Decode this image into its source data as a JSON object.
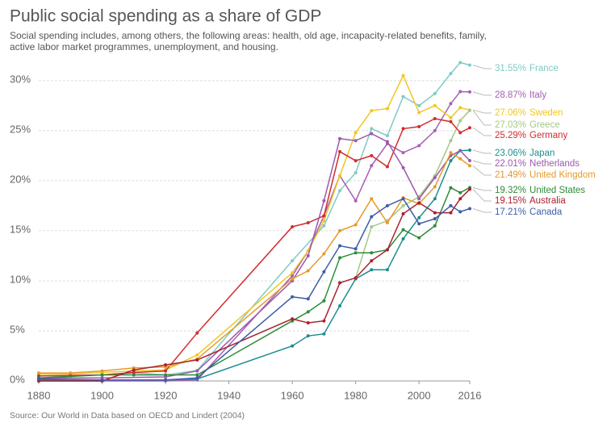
{
  "chart_data": {
    "type": "line",
    "title": "Public social spending as a share of GDP",
    "subtitle": [
      "Social spending includes, among others, the following areas: health, old age, incapacity-related benefits, family,",
      "active labor market programmes, unemployment, and housing."
    ],
    "source": "Source: Our World in Data based on OECD and Lindert (2004)",
    "xlim": [
      1880,
      2016
    ],
    "xticks": [
      1880,
      1900,
      1920,
      1940,
      1960,
      1980,
      2000,
      2016
    ],
    "ylim": [
      0,
      31.6
    ],
    "yticks": [
      {
        "value": 0,
        "label": "0%"
      },
      {
        "value": 5,
        "label": "5%"
      },
      {
        "value": 10,
        "label": "10%"
      },
      {
        "value": 15,
        "label": "15%"
      },
      {
        "value": 20,
        "label": "20%"
      },
      {
        "value": 25,
        "label": "25%"
      },
      {
        "value": 30,
        "label": "30%"
      }
    ],
    "grid": true,
    "series": [
      {
        "name": "France",
        "color": "#7fcac8",
        "x": [
          1880,
          1890,
          1900,
          1910,
          1920,
          1930,
          1960,
          1970,
          1975,
          1980,
          1985,
          1990,
          1995,
          2000,
          2005,
          2010,
          2013,
          2016
        ],
        "values": [
          0.5,
          0.5,
          0.6,
          0.8,
          0.6,
          1.05,
          12,
          15.5,
          19,
          20.8,
          25.2,
          24.5,
          28.4,
          27.5,
          28.7,
          30.7,
          31.8,
          31.55
        ],
        "value_labels": [
          null,
          null,
          null,
          null,
          null,
          null,
          null,
          null,
          null,
          null,
          null,
          null,
          null,
          null,
          null,
          null,
          null,
          "31.55%"
        ]
      },
      {
        "name": "Italy",
        "color": "#a660b3",
        "x": [
          1880,
          1900,
          1920,
          1930,
          1960,
          1965,
          1970,
          1975,
          1980,
          1985,
          1990,
          1995,
          2000,
          2005,
          2010,
          2013,
          2016
        ],
        "values": [
          0,
          0,
          0,
          0.1,
          10.5,
          13,
          16.5,
          20.5,
          18,
          21.5,
          23.7,
          22.8,
          23.5,
          25,
          27.7,
          28.9,
          28.87
        ],
        "value_labels": [
          null,
          null,
          null,
          null,
          null,
          null,
          null,
          null,
          null,
          null,
          null,
          null,
          null,
          null,
          null,
          null,
          "28.87%"
        ]
      },
      {
        "name": "Sweden",
        "color": "#f2c623",
        "x": [
          1880,
          1890,
          1900,
          1910,
          1920,
          1930,
          1960,
          1965,
          1970,
          1975,
          1980,
          1985,
          1990,
          1995,
          2000,
          2005,
          2010,
          2013,
          2016
        ],
        "values": [
          0.7,
          0.7,
          0.85,
          1.0,
          1.1,
          2.6,
          10.8,
          13,
          16,
          20.5,
          24.8,
          27,
          27.2,
          30.5,
          26.8,
          27.5,
          26.3,
          27.3,
          27.06
        ],
        "value_labels": [
          null,
          null,
          null,
          null,
          null,
          null,
          null,
          null,
          null,
          null,
          null,
          null,
          null,
          null,
          null,
          null,
          null,
          null,
          "27.06%"
        ]
      },
      {
        "name": "Greece",
        "color": "#a4c884",
        "x": [
          1980,
          1985,
          1990,
          1995,
          2000,
          2005,
          2010,
          2013,
          2016
        ],
        "values": [
          10.3,
          15.4,
          16,
          17.5,
          18.4,
          20.5,
          24,
          26,
          27.03
        ],
        "value_labels": [
          null,
          null,
          null,
          null,
          null,
          null,
          null,
          null,
          "27.03%"
        ]
      },
      {
        "name": "Germany",
        "color": "#d42b2e",
        "x": [
          1880,
          1890,
          1900,
          1910,
          1920,
          1930,
          1960,
          1965,
          1970,
          1975,
          1980,
          1985,
          1990,
          1995,
          2000,
          2005,
          2010,
          2013,
          2016
        ],
        "values": [
          0.5,
          0.55,
          0.6,
          0.85,
          1.0,
          4.8,
          15.4,
          15.8,
          16.5,
          22.9,
          22,
          22.5,
          21.4,
          25.2,
          25.4,
          26.2,
          25.9,
          24.8,
          25.29
        ],
        "value_labels": [
          null,
          null,
          null,
          null,
          null,
          null,
          null,
          null,
          null,
          null,
          null,
          null,
          null,
          null,
          null,
          null,
          null,
          null,
          "25.29%"
        ]
      },
      {
        "name": "Japan",
        "color": "#1d8e8f",
        "x": [
          1880,
          1900,
          1920,
          1930,
          1960,
          1965,
          1970,
          1975,
          1980,
          1985,
          1990,
          1995,
          2000,
          2005,
          2010,
          2013,
          2016
        ],
        "values": [
          0.1,
          0.1,
          0.1,
          0.2,
          3.5,
          4.5,
          4.7,
          7.5,
          10.2,
          11.1,
          11.1,
          14.2,
          16.3,
          18.2,
          22,
          23,
          23.06
        ],
        "value_labels": [
          null,
          null,
          null,
          null,
          null,
          null,
          null,
          null,
          null,
          null,
          null,
          null,
          null,
          null,
          null,
          null,
          "23.06%"
        ]
      },
      {
        "name": "Netherlands",
        "color": "#9b59ad",
        "x": [
          1880,
          1900,
          1920,
          1930,
          1960,
          1965,
          1970,
          1975,
          1980,
          1985,
          1990,
          1995,
          2000,
          2005,
          2010,
          2013,
          2016
        ],
        "values": [
          0.3,
          0.3,
          0.4,
          1.0,
          10,
          12.5,
          18,
          24.2,
          24,
          24.7,
          23.9,
          21.3,
          18.2,
          20.3,
          22.5,
          23,
          22.01
        ],
        "value_labels": [
          null,
          null,
          null,
          null,
          null,
          null,
          null,
          null,
          null,
          null,
          null,
          null,
          null,
          null,
          null,
          null,
          "22.01%"
        ]
      },
      {
        "name": "United Kingdom",
        "color": "#e69a2b",
        "x": [
          1880,
          1890,
          1900,
          1910,
          1920,
          1930,
          1960,
          1965,
          1970,
          1975,
          1980,
          1985,
          1990,
          1995,
          2000,
          2005,
          2010,
          2013,
          2016
        ],
        "values": [
          0.8,
          0.8,
          1.0,
          1.3,
          1.4,
          2.2,
          10.2,
          11,
          12.7,
          15,
          15.6,
          18.2,
          15.8,
          18.3,
          17.7,
          19.4,
          22.8,
          22.2,
          21.49
        ],
        "value_labels": [
          null,
          null,
          null,
          null,
          null,
          null,
          null,
          null,
          null,
          null,
          null,
          null,
          null,
          null,
          null,
          null,
          null,
          null,
          "21.49%"
        ]
      },
      {
        "name": "United States",
        "color": "#2e8b3a",
        "x": [
          1880,
          1900,
          1910,
          1920,
          1930,
          1960,
          1965,
          1970,
          1975,
          1980,
          1985,
          1990,
          1995,
          2000,
          2005,
          2010,
          2013,
          2016
        ],
        "values": [
          0.3,
          0.6,
          0.6,
          0.6,
          0.6,
          6.0,
          6.9,
          8.0,
          12.3,
          12.8,
          12.8,
          13.1,
          15.1,
          14.3,
          15.5,
          19.3,
          18.8,
          19.32
        ],
        "value_labels": [
          null,
          null,
          null,
          null,
          null,
          null,
          null,
          null,
          null,
          null,
          null,
          null,
          null,
          null,
          null,
          null,
          null,
          "19.32%"
        ]
      },
      {
        "name": "Australia",
        "color": "#a92230",
        "x": [
          1880,
          1900,
          1910,
          1920,
          1930,
          1960,
          1965,
          1970,
          1975,
          1980,
          1985,
          1990,
          1995,
          2000,
          2005,
          2010,
          2013,
          2016
        ],
        "values": [
          0,
          0,
          1.1,
          1.6,
          2.1,
          6.2,
          5.8,
          6.0,
          9.8,
          10.3,
          12,
          13.1,
          16.7,
          17.8,
          16.8,
          16.8,
          18.2,
          19.15
        ],
        "value_labels": [
          null,
          null,
          null,
          null,
          null,
          null,
          null,
          null,
          null,
          null,
          null,
          null,
          null,
          null,
          null,
          null,
          null,
          "19.15%"
        ]
      },
      {
        "name": "Canada",
        "color": "#3d5da8",
        "x": [
          1880,
          1900,
          1920,
          1930,
          1960,
          1965,
          1970,
          1975,
          1980,
          1985,
          1990,
          1995,
          2000,
          2005,
          2010,
          2013,
          2016
        ],
        "values": [
          0.2,
          0.1,
          0.1,
          0.3,
          8.4,
          8.2,
          10.9,
          13.5,
          13.2,
          16.4,
          17.5,
          18.2,
          15.7,
          16.2,
          17.5,
          16.9,
          17.21
        ],
        "value_labels": [
          null,
          null,
          null,
          null,
          null,
          null,
          null,
          null,
          null,
          null,
          null,
          null,
          null,
          null,
          null,
          null,
          "17.21%"
        ]
      }
    ]
  }
}
